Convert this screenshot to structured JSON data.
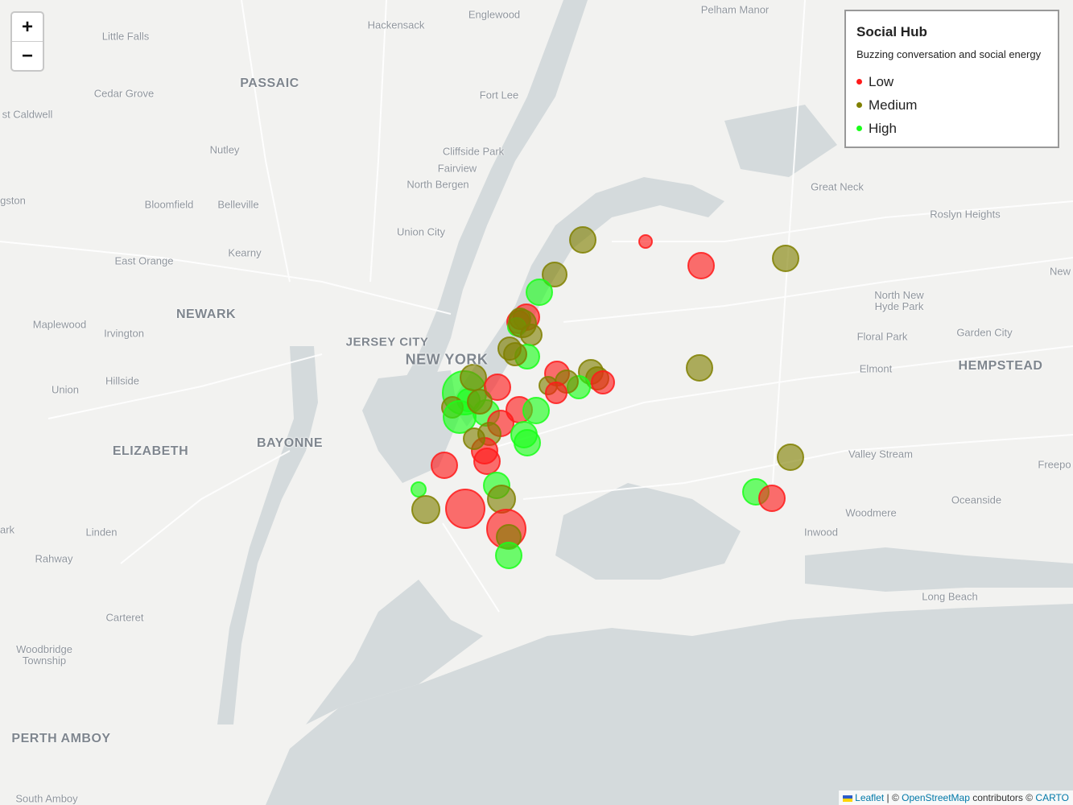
{
  "zoom": {
    "in_label": "+",
    "out_label": "−"
  },
  "legend": {
    "title": "Social Hub",
    "subtitle": "Buzzing conversation and social energy",
    "items": [
      {
        "label": "Low",
        "color": "#ff1a1a"
      },
      {
        "label": "Medium",
        "color": "#808000"
      },
      {
        "label": "High",
        "color": "#1aff1a"
      }
    ]
  },
  "attribution": {
    "leaflet": "Leaflet",
    "sep1": " | © ",
    "osm": "OpenStreetMap",
    "mid": " contributors © ",
    "carto": "CARTO"
  },
  "places": [
    "Englewood",
    "Hackensack",
    "Little Falls",
    "Pelham Manor",
    "PASSAIC",
    "Cedar Grove",
    "Fort Lee",
    "st Caldwell",
    "Nutley",
    "Cliffside Park",
    "Fairview",
    "North Bergen",
    "gston",
    "Bloomfield",
    "Belleville",
    "Great Neck",
    "Roslyn Heights",
    "Union City",
    "East Orange",
    "Kearny",
    "New",
    "North New Hyde Park",
    "NEWARK",
    "Maplewood",
    "Irvington",
    "JERSEY CITY",
    "NEW YORK",
    "Floral Park",
    "Garden City",
    "Hillside",
    "Union",
    "Elmont",
    "HEMPSTEAD",
    "ELIZABETH",
    "BAYONNE",
    "Valley Stream",
    "Freepo",
    "Oceanside",
    "Woodmere",
    "Linden",
    "ark",
    "Rahway",
    "Inwood",
    "Long Beach",
    "Carteret",
    "Woodbridge Township",
    "PERTH AMBOY",
    "South Amboy"
  ],
  "markers": [
    {
      "level": "Medium"
    },
    {
      "level": "Low"
    },
    {
      "level": "Low"
    },
    {
      "level": "Medium"
    },
    {
      "level": "Medium"
    },
    {
      "level": "High"
    },
    {
      "level": "Low"
    },
    {
      "level": "Low"
    },
    {
      "level": "High"
    },
    {
      "level": "Medium"
    },
    {
      "level": "Medium"
    },
    {
      "level": "High"
    },
    {
      "level": "Medium"
    },
    {
      "level": "Medium"
    },
    {
      "level": "Low"
    },
    {
      "level": "Medium"
    },
    {
      "level": "Medium"
    },
    {
      "level": "Medium"
    },
    {
      "level": "Low"
    },
    {
      "level": "High"
    },
    {
      "level": "Medium"
    },
    {
      "level": "Low"
    },
    {
      "level": "High"
    },
    {
      "level": "High"
    },
    {
      "level": "Medium"
    },
    {
      "level": "Low"
    },
    {
      "level": "Medium"
    },
    {
      "level": "High"
    },
    {
      "level": "High"
    },
    {
      "level": "Low"
    },
    {
      "level": "High"
    },
    {
      "level": "Medium"
    },
    {
      "level": "Low"
    },
    {
      "level": "High"
    },
    {
      "level": "Medium"
    },
    {
      "level": "Low"
    },
    {
      "level": "Medium"
    },
    {
      "level": "Low"
    },
    {
      "level": "High"
    },
    {
      "level": "High"
    },
    {
      "level": "Low"
    },
    {
      "level": "Medium"
    },
    {
      "level": "Medium"
    },
    {
      "level": "Low"
    },
    {
      "level": "High"
    },
    {
      "level": "Medium"
    },
    {
      "level": "Low"
    },
    {
      "level": "Medium"
    },
    {
      "level": "High"
    },
    {
      "level": "Medium"
    },
    {
      "level": "High"
    },
    {
      "level": "Low"
    },
    {
      "level": "Medium"
    }
  ]
}
